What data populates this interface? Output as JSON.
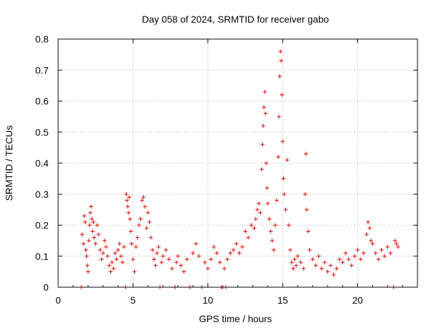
{
  "chart_data": {
    "type": "scatter",
    "title": "Day 058 of 2024, SRMTID for receiver gabo",
    "xlabel": "GPS time / hours",
    "ylabel": "SRMTID / TECUs",
    "xlim": [
      0,
      24
    ],
    "ylim": [
      0,
      0.8
    ],
    "x_ticks": [
      0,
      5,
      10,
      15,
      20
    ],
    "y_ticks": [
      0,
      0.1,
      0.2,
      0.3,
      0.4,
      0.5,
      0.6,
      0.7,
      0.8
    ],
    "x_tick_labels": [
      "0",
      "5",
      "10",
      "15",
      "20"
    ],
    "y_tick_labels": [
      "0",
      "0.1",
      "0.2",
      "0.3",
      "0.4",
      "0.5",
      "0.6",
      "0.7",
      "0.8"
    ],
    "grid": true,
    "marker": "+",
    "color": "#e00000",
    "series": [
      {
        "name": "SRMTID",
        "points": [
          [
            1.55,
            0
          ],
          [
            1.6,
            0.17
          ],
          [
            1.7,
            0.14
          ],
          [
            1.75,
            0.23
          ],
          [
            1.8,
            0.21
          ],
          [
            1.85,
            0.12
          ],
          [
            1.9,
            0.1
          ],
          [
            1.95,
            0.07
          ],
          [
            2.0,
            0.05
          ],
          [
            2.05,
            0.15
          ],
          [
            2.1,
            0.2
          ],
          [
            2.15,
            0.24
          ],
          [
            2.2,
            0.26
          ],
          [
            2.25,
            0.22
          ],
          [
            2.3,
            0.18
          ],
          [
            2.35,
            0.21
          ],
          [
            2.4,
            0.16
          ],
          [
            2.5,
            0.14
          ],
          [
            2.6,
            0.2
          ],
          [
            2.7,
            0.17
          ],
          [
            2.8,
            0.12
          ],
          [
            2.9,
            0.09
          ],
          [
            3.0,
            0.11
          ],
          [
            3.1,
            0.15
          ],
          [
            3.2,
            0.13
          ],
          [
            3.3,
            0.1
          ],
          [
            3.4,
            0.07
          ],
          [
            3.5,
            0.05
          ],
          [
            3.6,
            0.08
          ],
          [
            3.7,
            0.06
          ],
          [
            3.8,
            0.11
          ],
          [
            3.9,
            0.09
          ],
          [
            4.0,
            0.12
          ],
          [
            4.1,
            0.14
          ],
          [
            4.2,
            0.1
          ],
          [
            4.3,
            0.08
          ],
          [
            4.4,
            0.13
          ],
          [
            4.5,
            0.0
          ],
          [
            4.55,
            0.3
          ],
          [
            4.6,
            0.28
          ],
          [
            4.65,
            0.26
          ],
          [
            4.7,
            0.24
          ],
          [
            4.75,
            0.29
          ],
          [
            4.8,
            0.22
          ],
          [
            4.85,
            0.18
          ],
          [
            4.9,
            0.14
          ],
          [
            5.0,
            0.09
          ],
          [
            5.1,
            0.05
          ],
          [
            5.2,
            0.13
          ],
          [
            5.3,
            0.16
          ],
          [
            5.4,
            0.2
          ],
          [
            5.5,
            0.22
          ],
          [
            5.6,
            0.28
          ],
          [
            5.7,
            0.29
          ],
          [
            5.8,
            0.26
          ],
          [
            5.9,
            0.19
          ],
          [
            6.0,
            0.24
          ],
          [
            6.1,
            0.21
          ],
          [
            6.2,
            0.16
          ],
          [
            6.3,
            0.12
          ],
          [
            6.4,
            0.09
          ],
          [
            6.5,
            0.07
          ],
          [
            6.6,
            0.11
          ],
          [
            6.7,
            0.13
          ],
          [
            6.8,
            0.0
          ],
          [
            6.9,
            0.08
          ],
          [
            7.0,
            0.1
          ],
          [
            7.2,
            0.12
          ],
          [
            7.4,
            0.09
          ],
          [
            7.6,
            0.06
          ],
          [
            7.8,
            0.0
          ],
          [
            7.9,
            0.08
          ],
          [
            8.0,
            0.1
          ],
          [
            8.2,
            0.07
          ],
          [
            8.4,
            0.05
          ],
          [
            8.6,
            0.09
          ],
          [
            8.8,
            0.0
          ],
          [
            9.0,
            0.11
          ],
          [
            9.2,
            0.14
          ],
          [
            9.4,
            0.1
          ],
          [
            9.6,
            0.0
          ],
          [
            9.8,
            0.08
          ],
          [
            10.0,
            0.06
          ],
          [
            10.2,
            0.09
          ],
          [
            10.4,
            0.13
          ],
          [
            10.6,
            0.11
          ],
          [
            10.8,
            0.08
          ],
          [
            10.9,
            0.0
          ],
          [
            11.0,
            0.0
          ],
          [
            11.1,
            0.06
          ],
          [
            11.2,
            0.0
          ],
          [
            11.3,
            0.09
          ],
          [
            11.5,
            0.11
          ],
          [
            11.7,
            0.12
          ],
          [
            11.9,
            0.14
          ],
          [
            12.1,
            0.11
          ],
          [
            12.3,
            0.13
          ],
          [
            12.5,
            0.18
          ],
          [
            12.7,
            0.16
          ],
          [
            12.9,
            0.2
          ],
          [
            13.1,
            0.19
          ],
          [
            13.2,
            0.22
          ],
          [
            13.3,
            0.25
          ],
          [
            13.4,
            0.27
          ],
          [
            13.5,
            0.24
          ],
          [
            13.6,
            0.38
          ],
          [
            13.65,
            0.46
          ],
          [
            13.7,
            0.52
          ],
          [
            13.75,
            0.58
          ],
          [
            13.8,
            0.63
          ],
          [
            13.85,
            0.56
          ],
          [
            13.9,
            0.4
          ],
          [
            13.95,
            0.32
          ],
          [
            14.0,
            0.27
          ],
          [
            14.1,
            0.22
          ],
          [
            14.2,
            0.18
          ],
          [
            14.3,
            0.15
          ],
          [
            14.4,
            0.12
          ],
          [
            14.5,
            0.2
          ],
          [
            14.6,
            0.28
          ],
          [
            14.7,
            0.42
          ],
          [
            14.75,
            0.55
          ],
          [
            14.8,
            0.68
          ],
          [
            14.85,
            0.76
          ],
          [
            14.9,
            0.73
          ],
          [
            14.95,
            0.62
          ],
          [
            15.0,
            0.47
          ],
          [
            15.05,
            0.35
          ],
          [
            15.1,
            0.3
          ],
          [
            15.2,
            0.25
          ],
          [
            15.3,
            0.41
          ],
          [
            15.4,
            0.2
          ],
          [
            15.5,
            0.12
          ],
          [
            15.6,
            0.08
          ],
          [
            15.7,
            0.06
          ],
          [
            15.8,
            0.09
          ],
          [
            15.9,
            0.07
          ],
          [
            16.0,
            0.1
          ],
          [
            16.2,
            0.08
          ],
          [
            16.4,
            0.06
          ],
          [
            16.5,
            0.3
          ],
          [
            16.55,
            0.43
          ],
          [
            16.6,
            0.25
          ],
          [
            16.7,
            0.18
          ],
          [
            16.8,
            0.12
          ],
          [
            17.0,
            0.09
          ],
          [
            17.2,
            0.07
          ],
          [
            17.4,
            0.1
          ],
          [
            17.6,
            0.06
          ],
          [
            17.8,
            0.08
          ],
          [
            18.0,
            0.05
          ],
          [
            18.2,
            0.07
          ],
          [
            18.4,
            0.04
          ],
          [
            18.6,
            0.06
          ],
          [
            18.8,
            0.09
          ],
          [
            19.0,
            0.08
          ],
          [
            19.2,
            0.11
          ],
          [
            19.4,
            0.09
          ],
          [
            19.6,
            0.07
          ],
          [
            19.8,
            0.1
          ],
          [
            20.0,
            0.12
          ],
          [
            20.2,
            0.09
          ],
          [
            20.4,
            0.11
          ],
          [
            20.6,
            0.17
          ],
          [
            20.7,
            0.21
          ],
          [
            20.8,
            0.19
          ],
          [
            20.9,
            0.15
          ],
          [
            21.0,
            0.14
          ],
          [
            21.2,
            0.11
          ],
          [
            21.4,
            0.09
          ],
          [
            21.6,
            0.12
          ],
          [
            21.8,
            0.1
          ],
          [
            22.0,
            0.13
          ],
          [
            22.2,
            0.11
          ],
          [
            22.4,
            0.0
          ],
          [
            22.5,
            0.15
          ],
          [
            22.6,
            0.14
          ],
          [
            22.7,
            0.13
          ]
        ]
      }
    ]
  }
}
